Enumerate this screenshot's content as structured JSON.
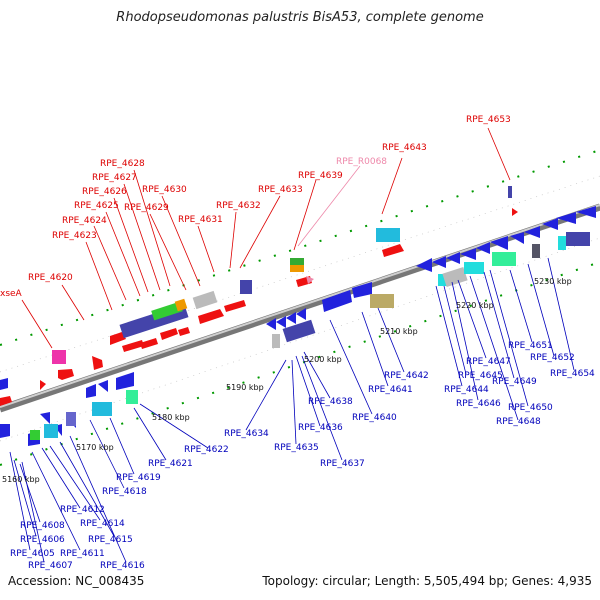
{
  "title": "Rhodopseudomonas palustris BisA53, complete genome",
  "footer": {
    "accession": "Accession: NC_008435",
    "summary": "Topology: circular; Length: 5,505,494 bp; Genes: 4,935"
  },
  "colors": {
    "forward_label": "#dd0000",
    "reverse_label": "#0000bb",
    "rna_label": "#ee88aa",
    "backbone": "#888888",
    "ticks": "#009900"
  },
  "scale_ticks": [
    "5160 kbp",
    "5170 kbp",
    "5180 kbp",
    "5190 kbp",
    "5200 kbp",
    "5210 kbp",
    "5220 kbp",
    "5230 kbp"
  ],
  "forward_genes": [
    "xseA",
    "RPE_4620",
    "RPE_4623",
    "RPE_4624",
    "RPE_4625",
    "RPE_4626",
    "RPE_4627",
    "RPE_4628",
    "RPE_4629",
    "RPE_4630",
    "RPE_4631",
    "RPE_4632",
    "RPE_4633",
    "RPE_4639",
    "RPE_4643",
    "RPE_4653"
  ],
  "rna_genes": [
    "RPE_R0068"
  ],
  "reverse_genes": [
    "RPE_4605",
    "RPE_4606",
    "RPE_4607",
    "RPE_4608",
    "RPE_4611",
    "RPE_4612",
    "RPE_4614",
    "RPE_4615",
    "RPE_4616",
    "RPE_4618",
    "RPE_4619",
    "RPE_4621",
    "RPE_4622",
    "RPE_4634",
    "RPE_4635",
    "RPE_4636",
    "RPE_4637",
    "RPE_4638",
    "RPE_4640",
    "RPE_4641",
    "RPE_4642",
    "RPE_4644",
    "RPE_4645",
    "RPE_4646",
    "RPE_4647",
    "RPE_4648",
    "RPE_4649",
    "RPE_4650",
    "RPE_4651",
    "RPE_4652",
    "RPE_4654"
  ]
}
